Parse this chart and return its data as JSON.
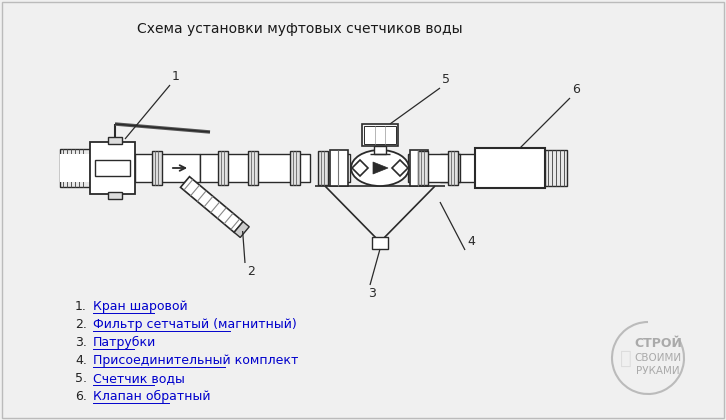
{
  "title": "Схема установки муфтовых счетчиков воды",
  "bg_color": "#f0f0f0",
  "line_color": "#2a2a2a",
  "legend_items": [
    "1. Кран шаровой",
    "2. Фильтр сетчатый (магнитный)",
    "3. Патрубки",
    "4. Присоединительный комплект",
    "5. Счетчик воды",
    "6. Клапан обратный"
  ],
  "link_color": "#0000cc",
  "watermark_text1": "СТРОЙ",
  "watermark_text2": "СВОИМИ",
  "watermark_text3": "РУКАМИ"
}
